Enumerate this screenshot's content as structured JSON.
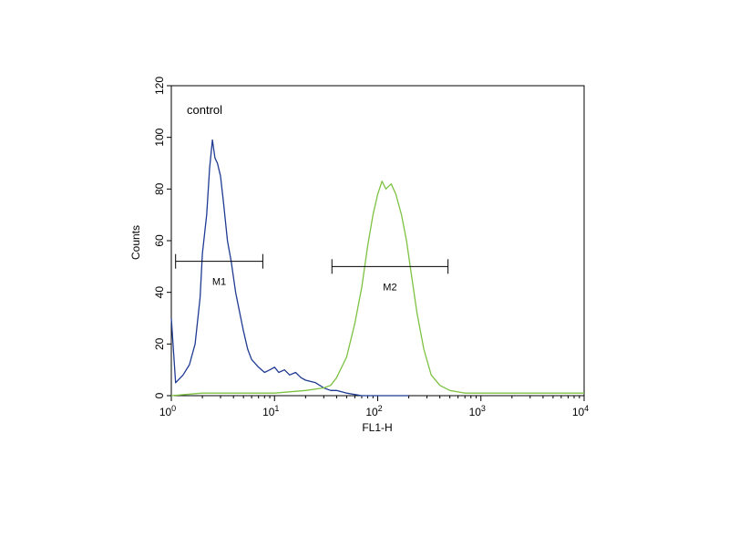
{
  "chart_data": {
    "type": "line",
    "annotation": "control",
    "xlabel": "FL1-H",
    "ylabel": "Counts",
    "x_scale": "log",
    "xlim": [
      1,
      10000
    ],
    "ylim": [
      0,
      120
    ],
    "y_ticks": [
      0,
      20,
      40,
      60,
      80,
      100,
      120
    ],
    "y_tick_labels": [
      "0",
      "20",
      "40",
      "60",
      "80",
      "100",
      "120"
    ],
    "x_ticks": [
      {
        "value": 1,
        "base": "10",
        "exp": "0"
      },
      {
        "value": 10,
        "base": "10",
        "exp": "1"
      },
      {
        "value": 100,
        "base": "10",
        "exp": "2"
      },
      {
        "value": 1000,
        "base": "10",
        "exp": "3"
      },
      {
        "value": 10000,
        "base": "10",
        "exp": "4"
      }
    ],
    "grid": false,
    "series": [
      {
        "color": "#1f3a93",
        "x": [
          1.0,
          1.1,
          1.3,
          1.5,
          1.7,
          1.9,
          2.0,
          2.2,
          2.35,
          2.5,
          2.65,
          2.8,
          3.0,
          3.2,
          3.5,
          3.8,
          4.2,
          4.6,
          5.0,
          5.5,
          6.0,
          7.0,
          8.0,
          9.0,
          10.0,
          11.0,
          12.5,
          14.0,
          16.0,
          18.0,
          20.0,
          25.0,
          30.0,
          35.0,
          40.0,
          50.0,
          70.0,
          100.0,
          200.0
        ],
        "y": [
          30,
          5,
          8,
          12,
          20,
          38,
          55,
          70,
          88,
          99,
          92,
          90,
          85,
          75,
          60,
          52,
          40,
          32,
          25,
          18,
          14,
          11,
          9,
          10,
          11,
          9,
          10,
          8,
          9,
          7,
          6,
          5,
          3,
          2,
          2,
          1,
          0,
          0,
          0
        ]
      },
      {
        "color": "#7dc242",
        "x": [
          1.0,
          2.0,
          5.0,
          10.0,
          20.0,
          30.0,
          35.0,
          40.0,
          50.0,
          60.0,
          70.0,
          80.0,
          90.0,
          100.0,
          110.0,
          120.0,
          135.0,
          150.0,
          170.0,
          190.0,
          210.0,
          240.0,
          280.0,
          330.0,
          400.0,
          500.0,
          700.0,
          1000.0,
          2000.0,
          5000.0,
          10000.0
        ],
        "y": [
          0,
          1,
          1,
          1,
          2,
          3,
          4,
          7,
          15,
          28,
          42,
          58,
          70,
          78,
          83,
          80,
          82,
          78,
          70,
          60,
          48,
          32,
          18,
          8,
          4,
          2,
          1,
          1,
          1,
          1,
          1
        ]
      }
    ],
    "markers": [
      {
        "label": "M1",
        "x_start": 1.1,
        "x_end": 7.7,
        "y": 52
      },
      {
        "label": "M2",
        "x_start": 36.0,
        "x_end": 480.0,
        "y": 50
      }
    ]
  }
}
